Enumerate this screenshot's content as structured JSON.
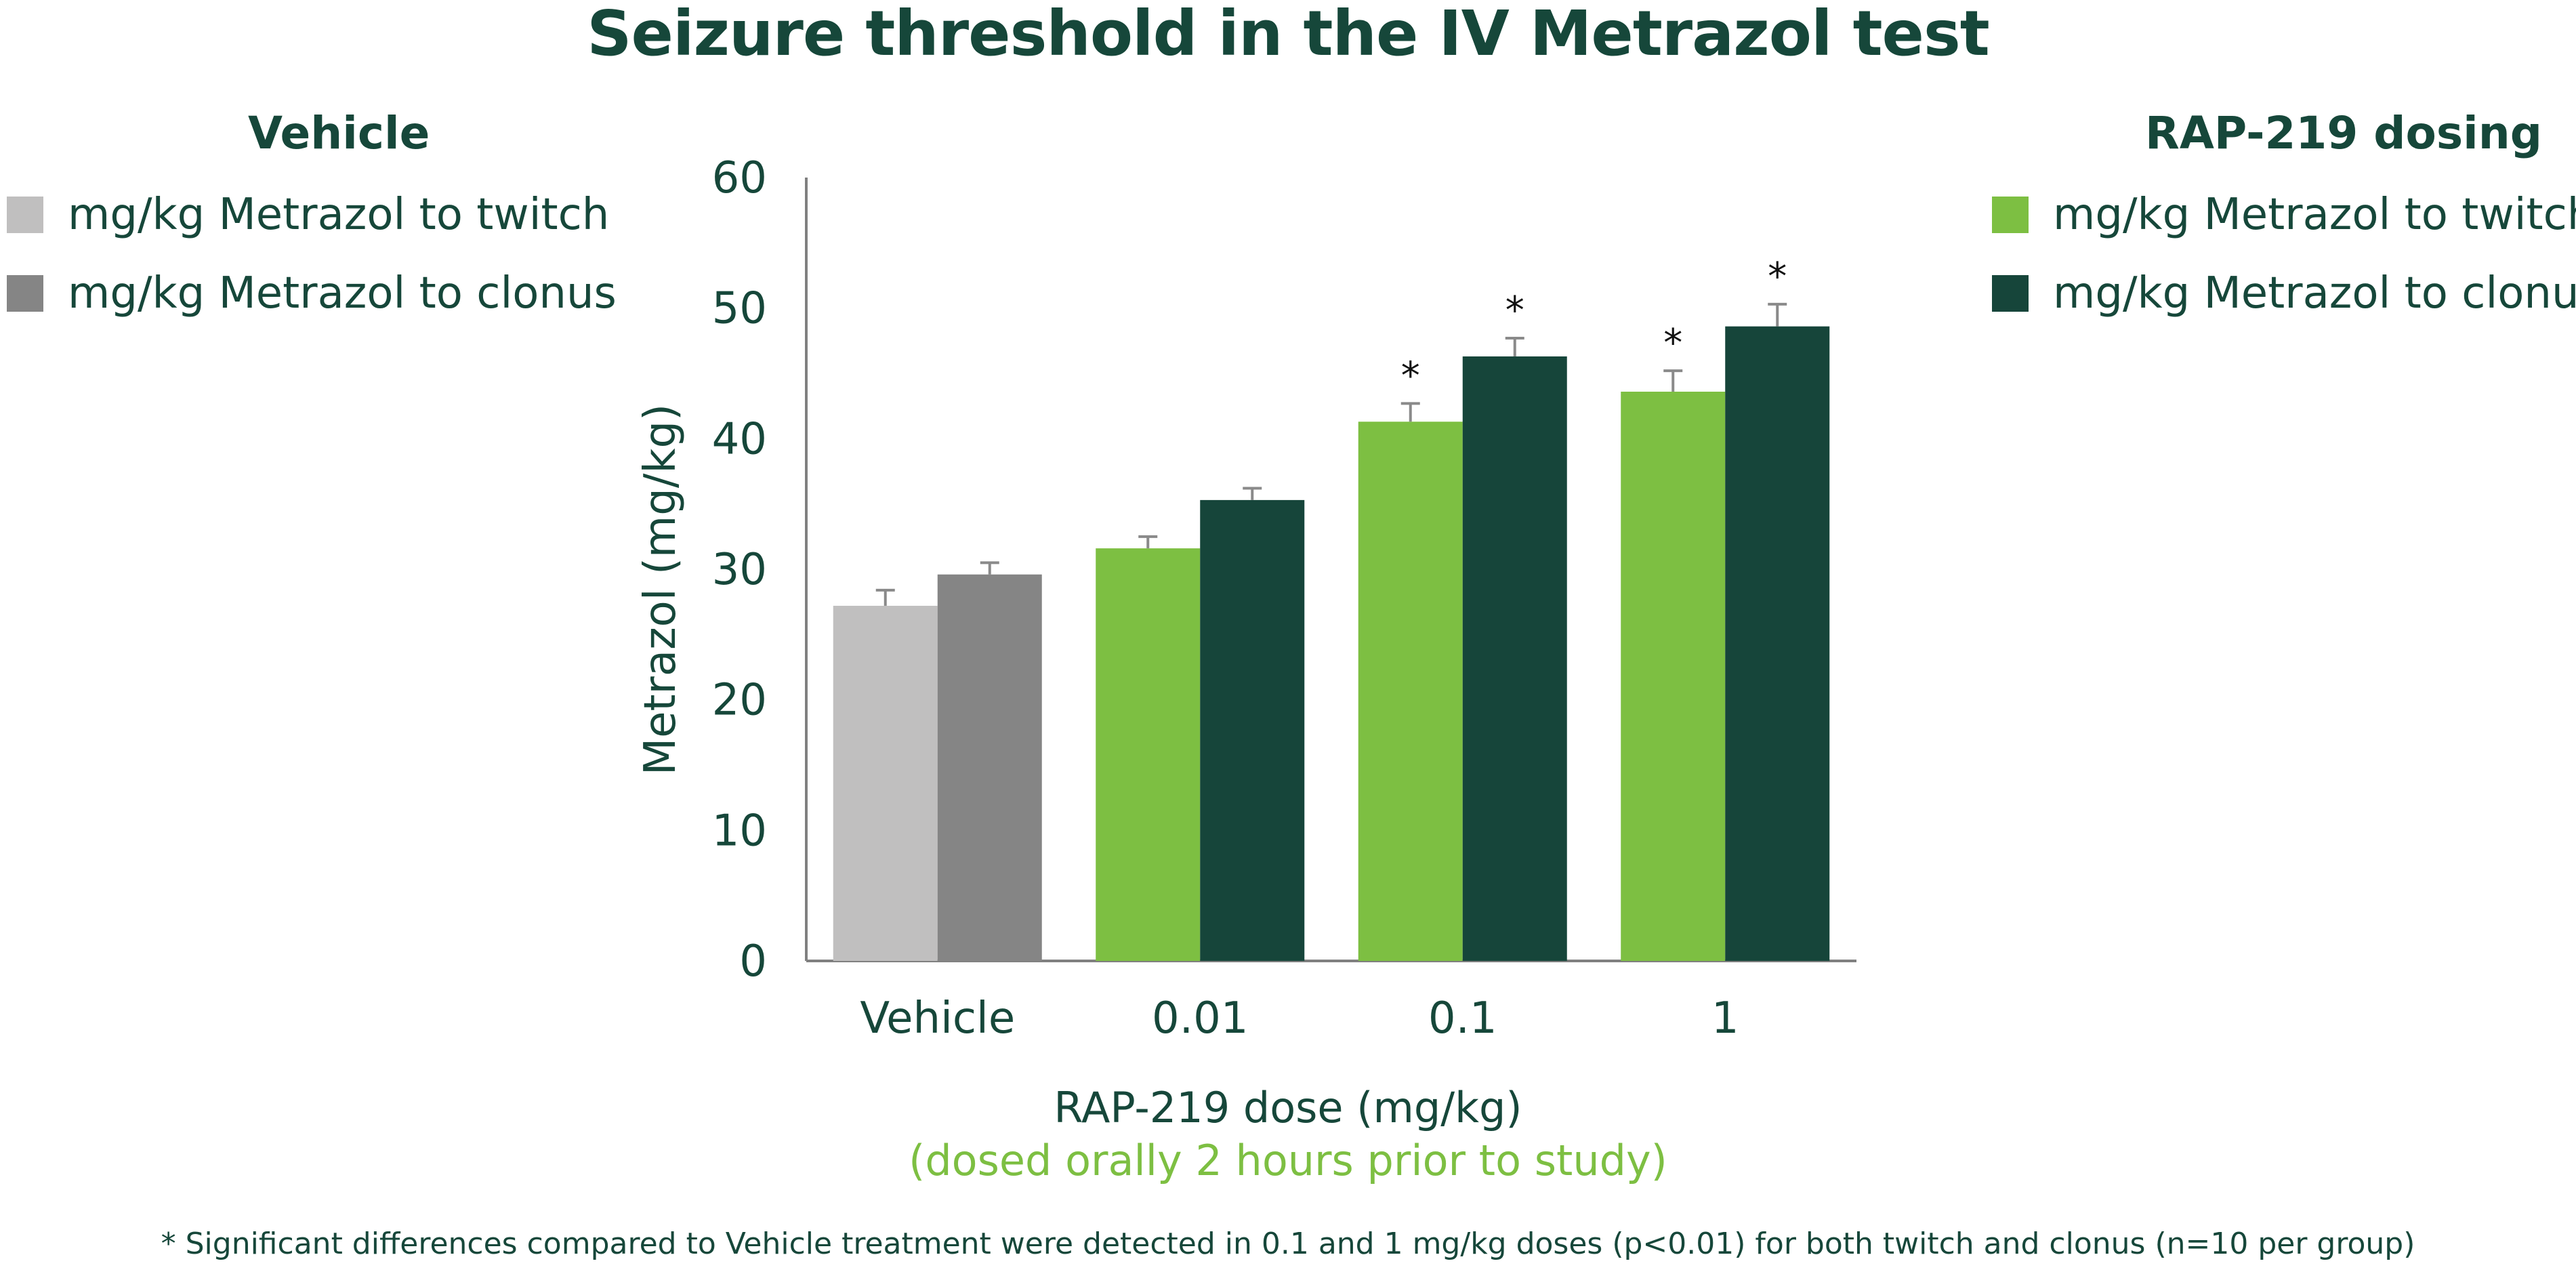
{
  "page": {
    "footnote": "* Significant differences compared to Vehicle treatment were detected in 0.1 and 1 mg/kg doses (p<0.01) for both twitch and clonus (n=10 per group)"
  },
  "legends": {
    "vehicle": {
      "title": "Vehicle",
      "items": [
        {
          "label": "mg/kg Metrazol to twitch",
          "color": "#c0bfbf"
        },
        {
          "label": "mg/kg Metrazol to clonus",
          "color": "#858585"
        }
      ]
    },
    "rap219": {
      "title": "RAP-219 dosing",
      "items": [
        {
          "label": "mg/kg Metrazol to twitch",
          "color": "#7dbf42"
        },
        {
          "label": "mg/kg Metrazol to clonus",
          "color": "#16453a"
        }
      ]
    }
  },
  "chart_data": {
    "type": "bar",
    "title": "Seizure threshold in the IV Metrazol test",
    "xlabel": "RAP-219 dose (mg/kg)",
    "xlabel_sub": "(dosed orally 2 hours prior to study)",
    "ylabel": "Metrazol (mg/kg)",
    "ylim": [
      0,
      60
    ],
    "yticks": [
      0,
      10,
      20,
      30,
      40,
      50,
      60
    ],
    "grid": false,
    "categories": [
      "Vehicle",
      "0.01",
      "0.1",
      "1"
    ],
    "series": [
      {
        "role": "twitch",
        "values": [
          27.2,
          31.6,
          41.3,
          43.6
        ],
        "errors": [
          1.2,
          0.9,
          1.4,
          1.6
        ],
        "significant": [
          false,
          false,
          true,
          true
        ],
        "colors": [
          "#c0bfbf",
          "#7dbf42",
          "#7dbf42",
          "#7dbf42"
        ]
      },
      {
        "role": "clonus",
        "values": [
          29.6,
          35.3,
          46.3,
          48.6
        ],
        "errors": [
          0.9,
          0.9,
          1.4,
          1.7
        ],
        "significant": [
          false,
          false,
          true,
          true
        ],
        "colors": [
          "#858585",
          "#16453a",
          "#16453a",
          "#16453a"
        ]
      }
    ],
    "significance_marker": "*",
    "error_bar_color": "#8a8a8a",
    "axis_color": "#808080"
  }
}
